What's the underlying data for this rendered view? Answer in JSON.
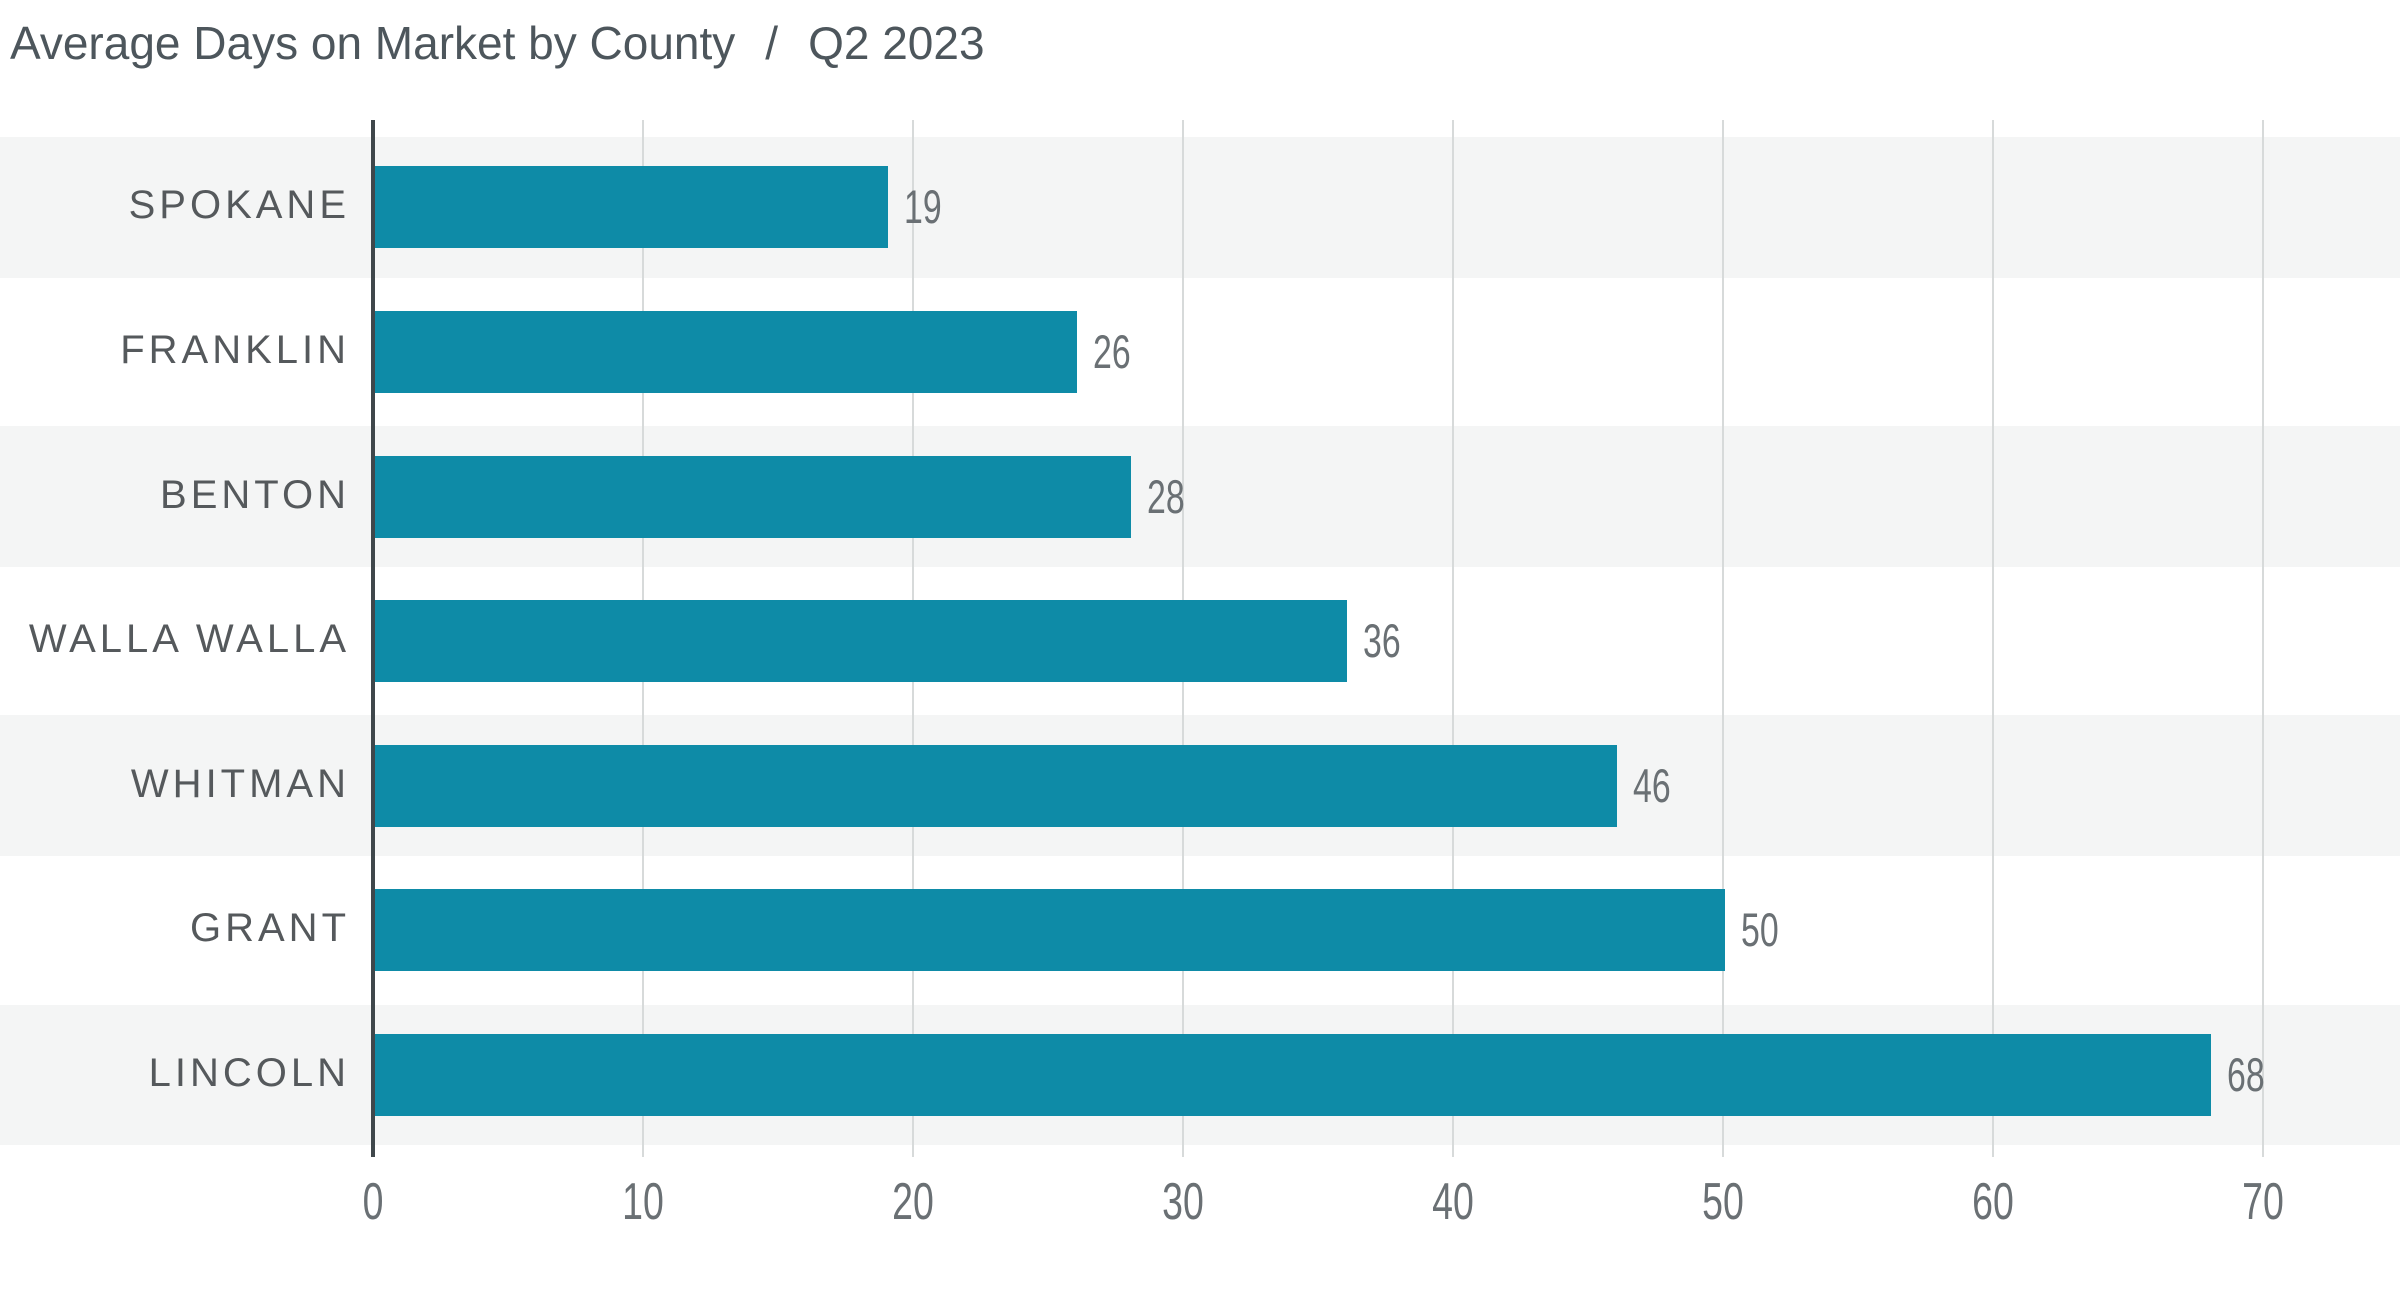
{
  "title": {
    "main": "Average Days on Market by County",
    "separator": "/",
    "period": "Q2 2023"
  },
  "chart_data": {
    "type": "bar",
    "orientation": "horizontal",
    "title": "Average Days on Market by County / Q2 2023",
    "categories": [
      "SPOKANE",
      "FRANKLIN",
      "BENTON",
      "WALLA WALLA",
      "WHITMAN",
      "GRANT",
      "LINCOLN"
    ],
    "values": [
      19,
      26,
      28,
      36,
      46,
      50,
      68
    ],
    "value_labels": [
      19,
      26,
      28,
      36,
      46,
      50,
      68
    ],
    "xlabel": "",
    "ylabel": "",
    "xlim": [
      0,
      70
    ],
    "x_ticks": [
      0,
      10,
      20,
      30,
      40,
      50,
      60,
      70
    ],
    "grid": true,
    "legend": false,
    "band_rows": "alternating, first row shaded"
  },
  "colors": {
    "bar": "#0e8ba7",
    "row_band": "#f4f5f5",
    "gridline": "#d7dada",
    "zero_line": "#3f474b",
    "title_text": "#4d565c",
    "category_text": "#55595c",
    "number_text": "#6a7074",
    "background": "#ffffff"
  }
}
